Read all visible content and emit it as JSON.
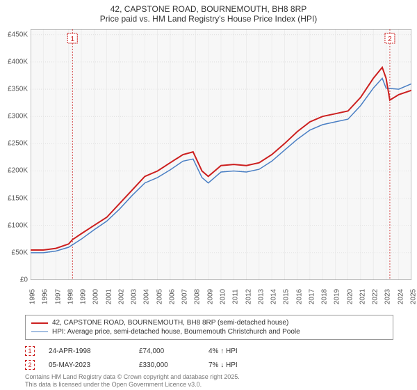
{
  "title": "42, CAPSTONE ROAD, BOURNEMOUTH, BH8 8RP",
  "subtitle": "Price paid vs. HM Land Registry's House Price Index (HPI)",
  "title_fontsize": 12,
  "chart": {
    "type": "line",
    "background_color": "#ffffff",
    "plot_background": "#f7f7f7",
    "grid_color": "#e6e6e6",
    "grid_dotted_color": "#cfcfcf",
    "axis_color": "#888888",
    "x_years": [
      1995,
      1996,
      1997,
      1998,
      1999,
      2000,
      2001,
      2002,
      2003,
      2004,
      2005,
      2006,
      2007,
      2008,
      2009,
      2010,
      2011,
      2012,
      2013,
      2014,
      2015,
      2016,
      2017,
      2018,
      2019,
      2020,
      2021,
      2022,
      2023,
      2024,
      2025
    ],
    "ylim": [
      0,
      460000
    ],
    "ytick_step": 50000,
    "yticks": [
      "£0",
      "£50K",
      "£100K",
      "£150K",
      "£200K",
      "£250K",
      "£300K",
      "£350K",
      "£400K",
      "£450K"
    ],
    "label_fontsize": 10,
    "series": [
      {
        "name": "price_paid",
        "label": "42, CAPSTONE ROAD, BOURNEMOUTH, BH8 8RP (semi-detached house)",
        "color": "#cc1f1f",
        "line_width": 2,
        "data": [
          [
            1995.0,
            55000
          ],
          [
            1996.0,
            55000
          ],
          [
            1997.0,
            58000
          ],
          [
            1998.0,
            66000
          ],
          [
            1998.3,
            74000
          ],
          [
            1999.0,
            85000
          ],
          [
            2000.0,
            100000
          ],
          [
            2001.0,
            115000
          ],
          [
            2002.0,
            140000
          ],
          [
            2003.0,
            165000
          ],
          [
            2004.0,
            190000
          ],
          [
            2005.0,
            200000
          ],
          [
            2006.0,
            215000
          ],
          [
            2007.0,
            230000
          ],
          [
            2007.8,
            235000
          ],
          [
            2008.5,
            200000
          ],
          [
            2009.0,
            190000
          ],
          [
            2010.0,
            210000
          ],
          [
            2011.0,
            212000
          ],
          [
            2012.0,
            210000
          ],
          [
            2013.0,
            215000
          ],
          [
            2014.0,
            230000
          ],
          [
            2015.0,
            250000
          ],
          [
            2016.0,
            272000
          ],
          [
            2017.0,
            290000
          ],
          [
            2018.0,
            300000
          ],
          [
            2019.0,
            305000
          ],
          [
            2020.0,
            310000
          ],
          [
            2021.0,
            335000
          ],
          [
            2022.0,
            370000
          ],
          [
            2022.7,
            390000
          ],
          [
            2023.0,
            370000
          ],
          [
            2023.3,
            330000
          ],
          [
            2024.0,
            340000
          ],
          [
            2025.0,
            348000
          ]
        ]
      },
      {
        "name": "hpi",
        "label": "HPI: Average price, semi-detached house, Bournemouth Christchurch and Poole",
        "color": "#4a7fc4",
        "line_width": 1.5,
        "data": [
          [
            1995.0,
            50000
          ],
          [
            1996.0,
            50000
          ],
          [
            1997.0,
            53000
          ],
          [
            1998.0,
            60000
          ],
          [
            1999.0,
            75000
          ],
          [
            2000.0,
            92000
          ],
          [
            2001.0,
            108000
          ],
          [
            2002.0,
            130000
          ],
          [
            2003.0,
            155000
          ],
          [
            2004.0,
            178000
          ],
          [
            2005.0,
            188000
          ],
          [
            2006.0,
            202000
          ],
          [
            2007.0,
            218000
          ],
          [
            2007.8,
            222000
          ],
          [
            2008.5,
            188000
          ],
          [
            2009.0,
            178000
          ],
          [
            2010.0,
            198000
          ],
          [
            2011.0,
            200000
          ],
          [
            2012.0,
            198000
          ],
          [
            2013.0,
            203000
          ],
          [
            2014.0,
            218000
          ],
          [
            2015.0,
            238000
          ],
          [
            2016.0,
            258000
          ],
          [
            2017.0,
            275000
          ],
          [
            2018.0,
            285000
          ],
          [
            2019.0,
            290000
          ],
          [
            2020.0,
            295000
          ],
          [
            2021.0,
            320000
          ],
          [
            2022.0,
            352000
          ],
          [
            2022.7,
            370000
          ],
          [
            2023.0,
            352000
          ],
          [
            2024.0,
            350000
          ],
          [
            2025.0,
            360000
          ]
        ]
      }
    ],
    "markers": [
      {
        "n": "1",
        "year": 1998.3,
        "color": "#cc1f1f",
        "date": "24-APR-1998",
        "price": "£74,000",
        "delta": "4% ↑ HPI"
      },
      {
        "n": "2",
        "year": 2023.3,
        "color": "#cc1f1f",
        "date": "05-MAY-2023",
        "price": "£330,000",
        "delta": "7% ↓ HPI"
      }
    ]
  },
  "legend": {
    "border_color": "#999999"
  },
  "footer_line1": "Contains HM Land Registry data © Crown copyright and database right 2025.",
  "footer_line2": "This data is licensed under the Open Government Licence v3.0."
}
